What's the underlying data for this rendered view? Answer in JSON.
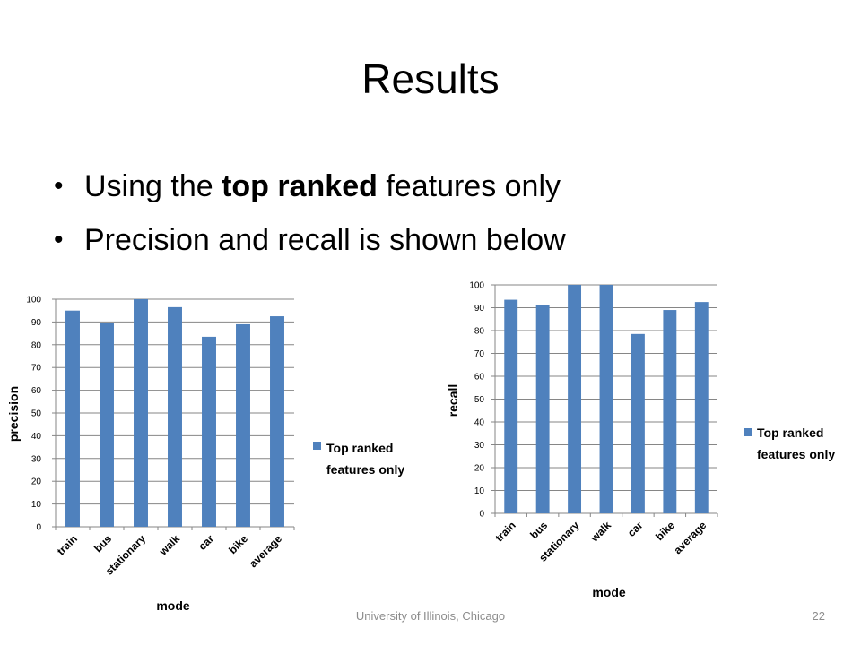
{
  "slide": {
    "title": "Results",
    "bullets": [
      {
        "before": "Using the ",
        "bold": "top ranked",
        "after": " features only"
      },
      {
        "before": "Precision and recall is shown below",
        "bold": "",
        "after": ""
      }
    ],
    "footer": "University of Illinois, Chicago",
    "page_number": "22"
  },
  "colors": {
    "bar": "#4f81bd",
    "grid": "#868686",
    "footer": "#8c8c8c"
  },
  "chart_data": [
    {
      "type": "bar",
      "categories": [
        "train",
        "bus",
        "stationary",
        "walk",
        "car",
        "bike",
        "average"
      ],
      "series": [
        {
          "name": "Top ranked features only",
          "values": [
            95,
            89.5,
            100,
            96.5,
            83.5,
            89,
            92.5
          ]
        }
      ],
      "xlabel": "mode",
      "ylabel": "precision",
      "ylim": [
        0,
        100
      ],
      "yticks": [
        0,
        10,
        20,
        30,
        40,
        50,
        60,
        70,
        80,
        90,
        100
      ],
      "grid": true,
      "legend": "right"
    },
    {
      "type": "bar",
      "categories": [
        "train",
        "bus",
        "stationary",
        "walk",
        "car",
        "bike",
        "average"
      ],
      "series": [
        {
          "name": "Top ranked features only",
          "values": [
            93.5,
            91,
            100,
            100,
            78.5,
            89,
            92.5
          ]
        }
      ],
      "xlabel": "mode",
      "ylabel": "recall",
      "ylim": [
        0,
        100
      ],
      "yticks": [
        0,
        10,
        20,
        30,
        40,
        50,
        60,
        70,
        80,
        90,
        100
      ],
      "grid": true,
      "legend": "right"
    }
  ]
}
